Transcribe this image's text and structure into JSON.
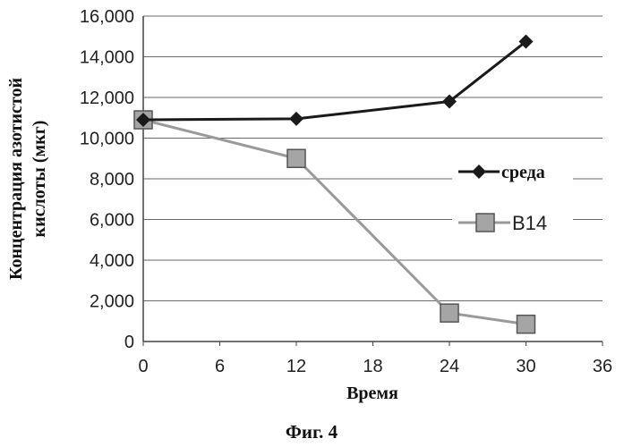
{
  "chart_data": {
    "type": "line",
    "ylabel_line1": "Концентрация азотистой",
    "ylabel_line2": "кислоты (мкг)",
    "xlabel": "Время",
    "caption": "Фиг. 4",
    "xlim": [
      0,
      36
    ],
    "ylim": [
      0,
      16000
    ],
    "x_ticks": [
      "0",
      "6",
      "12",
      "18",
      "24",
      "30",
      "36"
    ],
    "y_ticks": [
      "0",
      "2,000",
      "4,000",
      "6,000",
      "8,000",
      "10,000",
      "12,000",
      "14,000",
      "16,000"
    ],
    "grid": true,
    "legend_position": "right",
    "series": [
      {
        "name": "среда",
        "color": "#1a1a1a",
        "marker": "diamond",
        "x": [
          0,
          12,
          24,
          30
        ],
        "y": [
          10900,
          10950,
          11800,
          14750
        ]
      },
      {
        "name": "В14",
        "color": "#9a9a9a",
        "marker": "square",
        "x": [
          0,
          12,
          24,
          30
        ],
        "y": [
          10900,
          9000,
          1400,
          850
        ]
      }
    ]
  }
}
